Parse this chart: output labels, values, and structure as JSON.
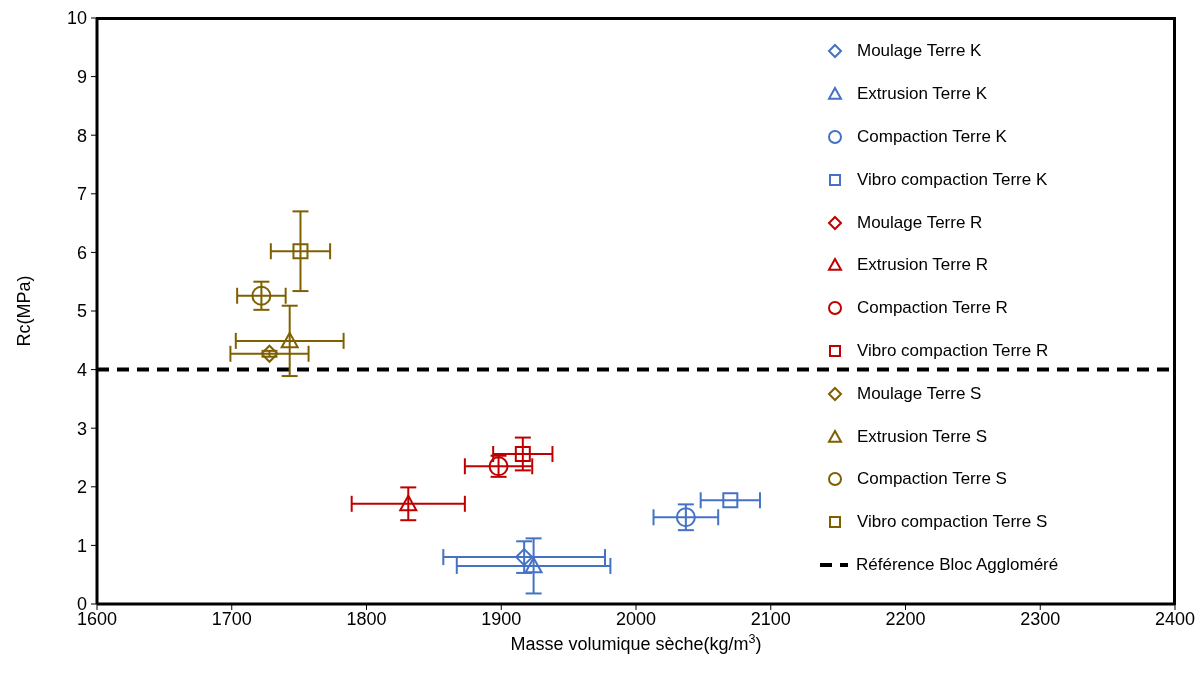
{
  "chart_data": {
    "type": "scatter",
    "xlabel": "Masse volumique sèche(kg/m$^{3}$)",
    "ylabel": "Rc(MPa)",
    "xlim": [
      1600,
      2400
    ],
    "xticks": [
      1600,
      1700,
      1800,
      1900,
      2000,
      2100,
      2200,
      2300,
      2400
    ],
    "ylim": [
      0,
      10
    ],
    "yticks": [
      0,
      1,
      2,
      3,
      4,
      5,
      6,
      7,
      8,
      9,
      10
    ],
    "grid": false,
    "legend": "top right",
    "series": [
      {
        "name": "Moulage Terre K",
        "color": "#4472c4",
        "marker": "diamond",
        "x": [
          1917
        ],
        "values": [
          0.8
        ],
        "errors": [
          0.27
        ],
        "xerrors": [
          60
        ]
      },
      {
        "name": "Extrusion Terre K",
        "color": "#4472c4",
        "marker": "triangle",
        "x": [
          1924
        ],
        "values": [
          0.65
        ],
        "errors": [
          0.47
        ],
        "xerrors": [
          57
        ]
      },
      {
        "name": "Compaction Terre K",
        "color": "#4472c4",
        "marker": "circle",
        "x": [
          2037
        ],
        "values": [
          1.48
        ],
        "errors": [
          0.22
        ],
        "xerrors": [
          24
        ]
      },
      {
        "name": "Vibro compaction Terre K",
        "color": "#4472c4",
        "marker": "square",
        "x": [
          2070
        ],
        "values": [
          1.77
        ],
        "xerrors": [
          22
        ]
      },
      {
        "name": "Moulage Terre R",
        "color": "#c00000",
        "marker": "diamond",
        "x": [
          null
        ],
        "values": [
          null
        ]
      },
      {
        "name": "Extrusion Terre R",
        "color": "#c00000",
        "marker": "triangle",
        "x": [
          1831
        ],
        "values": [
          1.71
        ],
        "errors": [
          0.28
        ],
        "xerrors": [
          42
        ]
      },
      {
        "name": "Compaction Terre R",
        "color": "#c00000",
        "marker": "circle",
        "x": [
          1898
        ],
        "values": [
          2.35
        ],
        "errors": [
          0.18
        ],
        "xerrors": [
          25
        ]
      },
      {
        "name": "Vibro compaction Terre R",
        "color": "#c00000",
        "marker": "square",
        "x": [
          1916
        ],
        "values": [
          2.56
        ],
        "errors": [
          0.28
        ],
        "xerrors": [
          22
        ]
      },
      {
        "name": "Moulage Terre S",
        "color": "#7f6000",
        "marker": "diamond",
        "x": [
          1728
        ],
        "values": [
          4.27
        ],
        "errors": [
          0.05
        ],
        "xerrors": [
          29
        ]
      },
      {
        "name": "Extrusion Terre S",
        "color": "#7f6000",
        "marker": "triangle",
        "x": [
          1743
        ],
        "values": [
          4.49
        ],
        "errors": [
          0.6
        ],
        "xerrors": [
          40
        ]
      },
      {
        "name": "Compaction Terre S",
        "color": "#7f6000",
        "marker": "circle",
        "x": [
          1722
        ],
        "values": [
          5.26
        ],
        "errors": [
          0.24
        ],
        "xerrors": [
          18
        ]
      },
      {
        "name": "Vibro compaction Terre S",
        "color": "#7f6000",
        "marker": "square",
        "x": [
          1751
        ],
        "values": [
          6.02
        ],
        "errors": [
          0.68
        ],
        "xerrors": [
          22
        ]
      }
    ],
    "ref_lines": [
      {
        "axis": "y",
        "value": 4,
        "label": "Référence Bloc Aggloméré",
        "color": "#000000",
        "line_style": "dashed"
      }
    ]
  }
}
